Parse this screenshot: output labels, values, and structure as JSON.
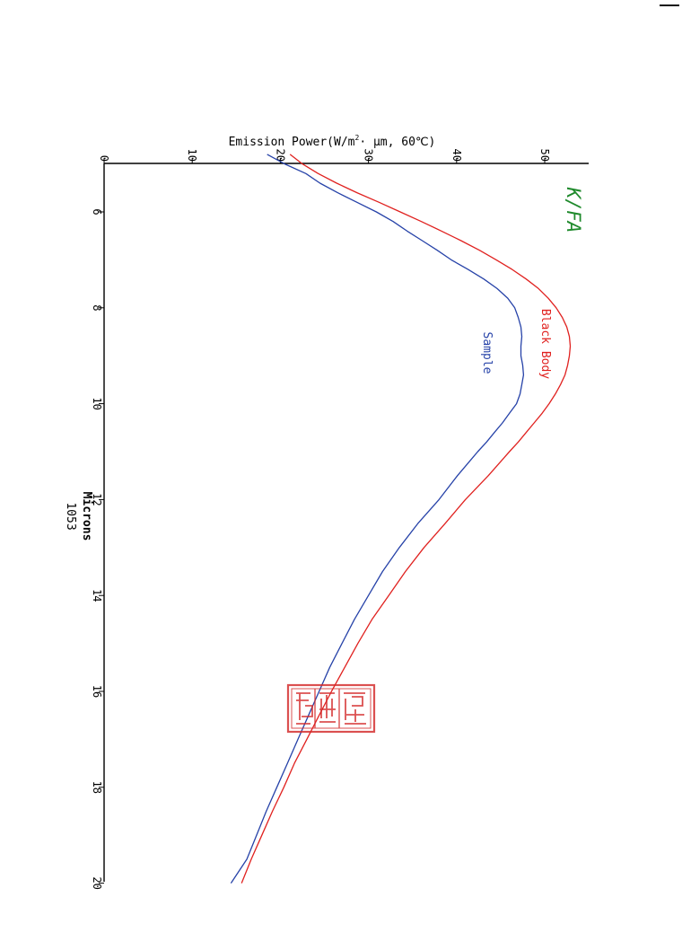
{
  "chart_data": {
    "type": "line",
    "title": "K/FA",
    "xlabel": "Microns",
    "xlabel_sub": "1053",
    "ylabel_main": "Emission Power(W/m",
    "ylabel_sup": "2",
    "ylabel_tail": "· μm, 60℃)",
    "xlim": [
      4.5,
      20
    ],
    "ylim": [
      0,
      55
    ],
    "x_ticks": [
      {
        "value": 6,
        "label": "6"
      },
      {
        "value": 8,
        "label": "8"
      },
      {
        "value": 10,
        "label": "10"
      },
      {
        "value": 12,
        "label": "12"
      },
      {
        "value": 14,
        "label": "14"
      },
      {
        "value": 16,
        "label": "16"
      },
      {
        "value": 18,
        "label": "18"
      },
      {
        "value": 20,
        "label": "20"
      }
    ],
    "y_ticks": [
      {
        "value": 0,
        "label": "0"
      },
      {
        "value": 10,
        "label": "10"
      },
      {
        "value": 20,
        "label": "20"
      },
      {
        "value": 30,
        "label": "30"
      },
      {
        "value": 40,
        "label": "40"
      },
      {
        "value": 50,
        "label": "50"
      }
    ],
    "series": [
      {
        "name": "Black Body",
        "color": "#e0211f",
        "points": [
          [
            4.8,
            21.1
          ],
          [
            5.0,
            22.5
          ],
          [
            5.2,
            24.3
          ],
          [
            5.4,
            26.4
          ],
          [
            5.6,
            28.7
          ],
          [
            5.8,
            31.2
          ],
          [
            6.0,
            33.6
          ],
          [
            6.2,
            36.0
          ],
          [
            6.4,
            38.3
          ],
          [
            6.6,
            40.5
          ],
          [
            6.8,
            42.6
          ],
          [
            7.0,
            44.5
          ],
          [
            7.2,
            46.3
          ],
          [
            7.4,
            47.9
          ],
          [
            7.6,
            49.3
          ],
          [
            7.8,
            50.4
          ],
          [
            8.0,
            51.3
          ],
          [
            8.2,
            52.0
          ],
          [
            8.4,
            52.5
          ],
          [
            8.6,
            52.8
          ],
          [
            8.8,
            52.9
          ],
          [
            9.0,
            52.8
          ],
          [
            9.2,
            52.6
          ],
          [
            9.4,
            52.3
          ],
          [
            9.6,
            51.8
          ],
          [
            9.8,
            51.2
          ],
          [
            10.0,
            50.5
          ],
          [
            10.2,
            49.7
          ],
          [
            10.4,
            48.8
          ],
          [
            10.6,
            47.9
          ],
          [
            10.8,
            47.0
          ],
          [
            11.0,
            46.0
          ],
          [
            11.5,
            43.6
          ],
          [
            12.0,
            41.0
          ],
          [
            12.5,
            38.7
          ],
          [
            13.0,
            36.3
          ],
          [
            13.5,
            34.2
          ],
          [
            14.0,
            32.3
          ],
          [
            14.5,
            30.4
          ],
          [
            15.0,
            28.8
          ],
          [
            15.5,
            27.3
          ],
          [
            16.0,
            25.8
          ],
          [
            16.5,
            24.4
          ],
          [
            17.0,
            23.0
          ],
          [
            17.5,
            21.6
          ],
          [
            18.0,
            20.4
          ],
          [
            18.5,
            19.1
          ],
          [
            19.0,
            17.9
          ],
          [
            19.5,
            16.7
          ],
          [
            20.0,
            15.6
          ]
        ]
      },
      {
        "name": "Sample",
        "color": "#2642a8",
        "points": [
          [
            4.8,
            18.5
          ],
          [
            5.0,
            20.5
          ],
          [
            5.2,
            22.9
          ],
          [
            5.4,
            24.5
          ],
          [
            5.6,
            26.5
          ],
          [
            5.8,
            28.7
          ],
          [
            6.0,
            30.9
          ],
          [
            6.2,
            32.8
          ],
          [
            6.4,
            34.4
          ],
          [
            6.6,
            36.1
          ],
          [
            6.8,
            37.8
          ],
          [
            7.0,
            39.4
          ],
          [
            7.2,
            41.3
          ],
          [
            7.4,
            43.1
          ],
          [
            7.6,
            44.6
          ],
          [
            7.8,
            45.8
          ],
          [
            8.0,
            46.6
          ],
          [
            8.2,
            47.0
          ],
          [
            8.4,
            47.3
          ],
          [
            8.6,
            47.4
          ],
          [
            8.8,
            47.3
          ],
          [
            9.0,
            47.3
          ],
          [
            9.2,
            47.5
          ],
          [
            9.4,
            47.6
          ],
          [
            9.6,
            47.4
          ],
          [
            9.8,
            47.2
          ],
          [
            10.0,
            46.8
          ],
          [
            10.2,
            46.0
          ],
          [
            10.4,
            45.2
          ],
          [
            10.6,
            44.3
          ],
          [
            10.8,
            43.4
          ],
          [
            11.0,
            42.4
          ],
          [
            11.5,
            40.1
          ],
          [
            12.0,
            38.0
          ],
          [
            12.5,
            35.6
          ],
          [
            13.0,
            33.5
          ],
          [
            13.5,
            31.6
          ],
          [
            14.0,
            30.0
          ],
          [
            14.5,
            28.4
          ],
          [
            15.0,
            27.0
          ],
          [
            15.5,
            25.6
          ],
          [
            16.0,
            24.4
          ],
          [
            16.5,
            23.2
          ],
          [
            17.0,
            22.0
          ],
          [
            17.5,
            20.8
          ],
          [
            18.0,
            19.6
          ],
          [
            18.5,
            18.4
          ],
          [
            19.0,
            17.3
          ],
          [
            19.5,
            16.2
          ],
          [
            20.0,
            14.4
          ]
        ]
      }
    ],
    "legend_labels": [
      {
        "series": "Black Body",
        "text": "Black Body",
        "color": "#e0211f"
      },
      {
        "series": "Sample",
        "text": "Sample",
        "color": "#2642a8"
      }
    ],
    "title_color": "#1f8a2c"
  },
  "stamp": {
    "kind": "red-seal",
    "color": "#d42a2a"
  }
}
